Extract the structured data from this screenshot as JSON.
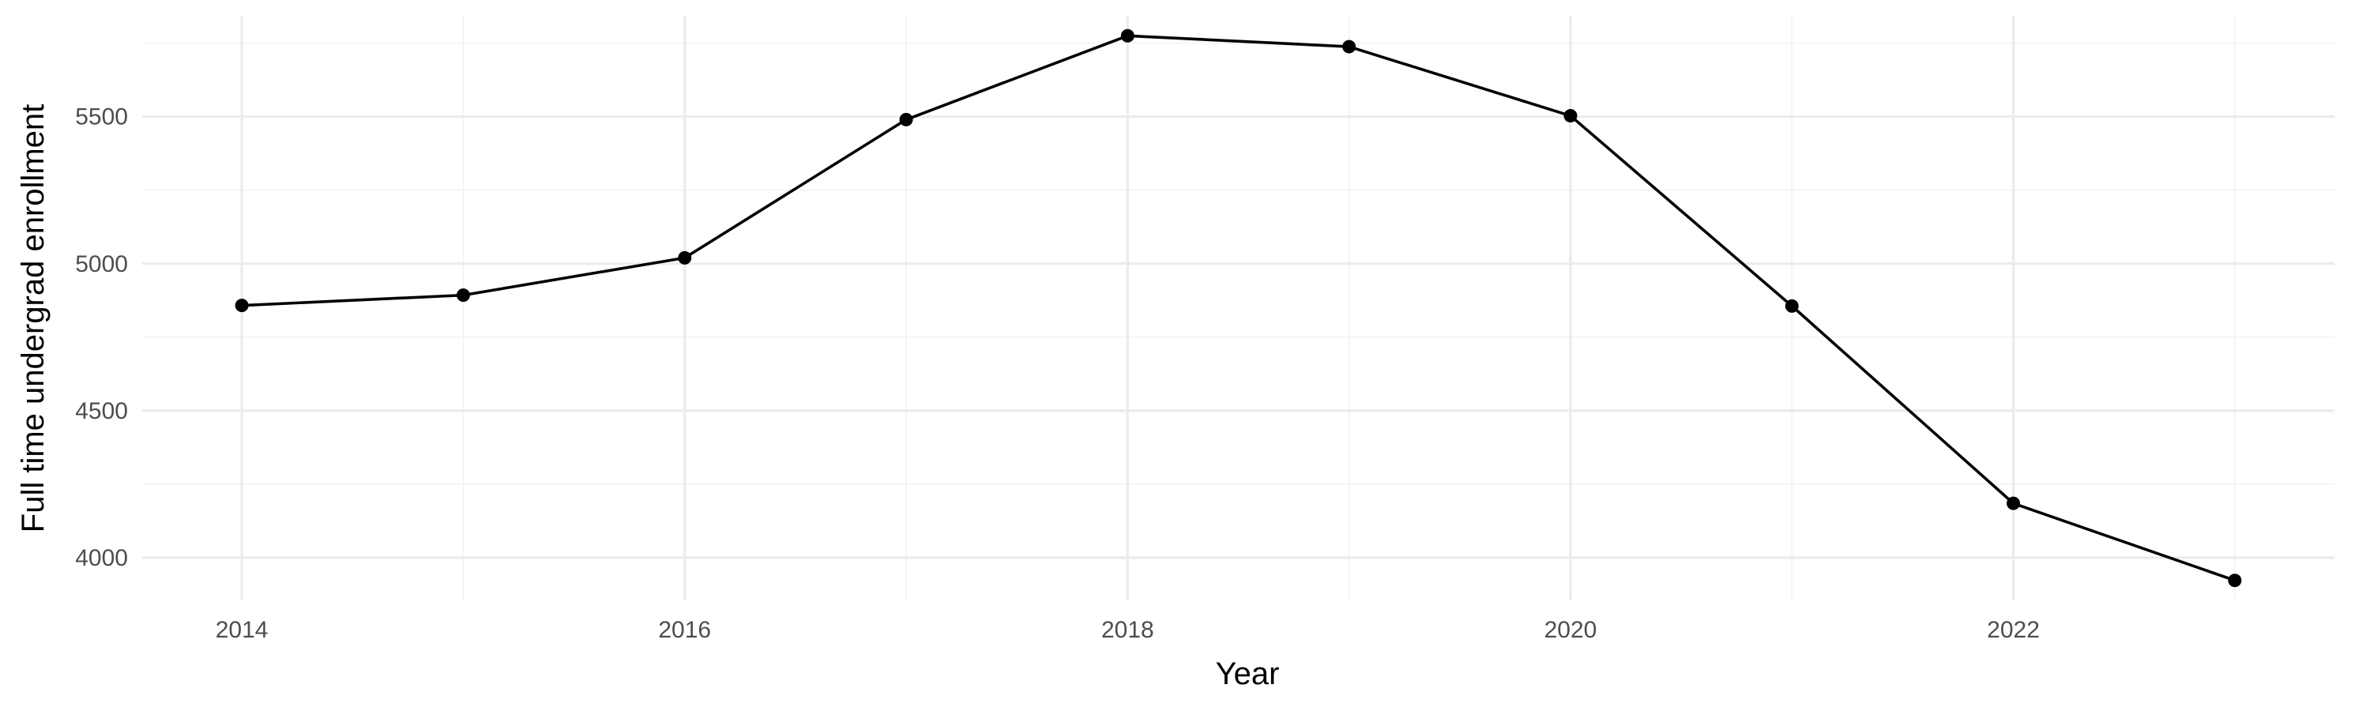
{
  "chart_data": {
    "type": "line",
    "title": "",
    "xlabel": "Year",
    "ylabel": "Full time undergrad enrollment",
    "x": [
      2014,
      2015,
      2016,
      2017,
      2018,
      2019,
      2020,
      2021,
      2022,
      2023
    ],
    "series": [
      {
        "values": [
          4858,
          4893,
          5020,
          5490,
          5775,
          5738,
          5503,
          4856,
          4185,
          3923
        ]
      }
    ],
    "x_ticks": [
      2014,
      2016,
      2018,
      2020,
      2022
    ],
    "x_tick_labels": [
      "2014",
      "2016",
      "2018",
      "2020",
      "2022"
    ],
    "y_ticks": [
      4000,
      4500,
      5000,
      5500
    ],
    "y_tick_labels": [
      "4000",
      "4500",
      "5000",
      "5500"
    ],
    "xlim": [
      2013.55,
      2023.45
    ],
    "ylim": [
      3855,
      5843
    ],
    "grid": true,
    "legend": "none",
    "colors": {
      "line": "#000000",
      "point": "#000000",
      "grid_major": "#ebebeb",
      "grid_minor": "#f2f2f2",
      "tick_label": "#4d4d4d",
      "background": "#ffffff"
    }
  }
}
